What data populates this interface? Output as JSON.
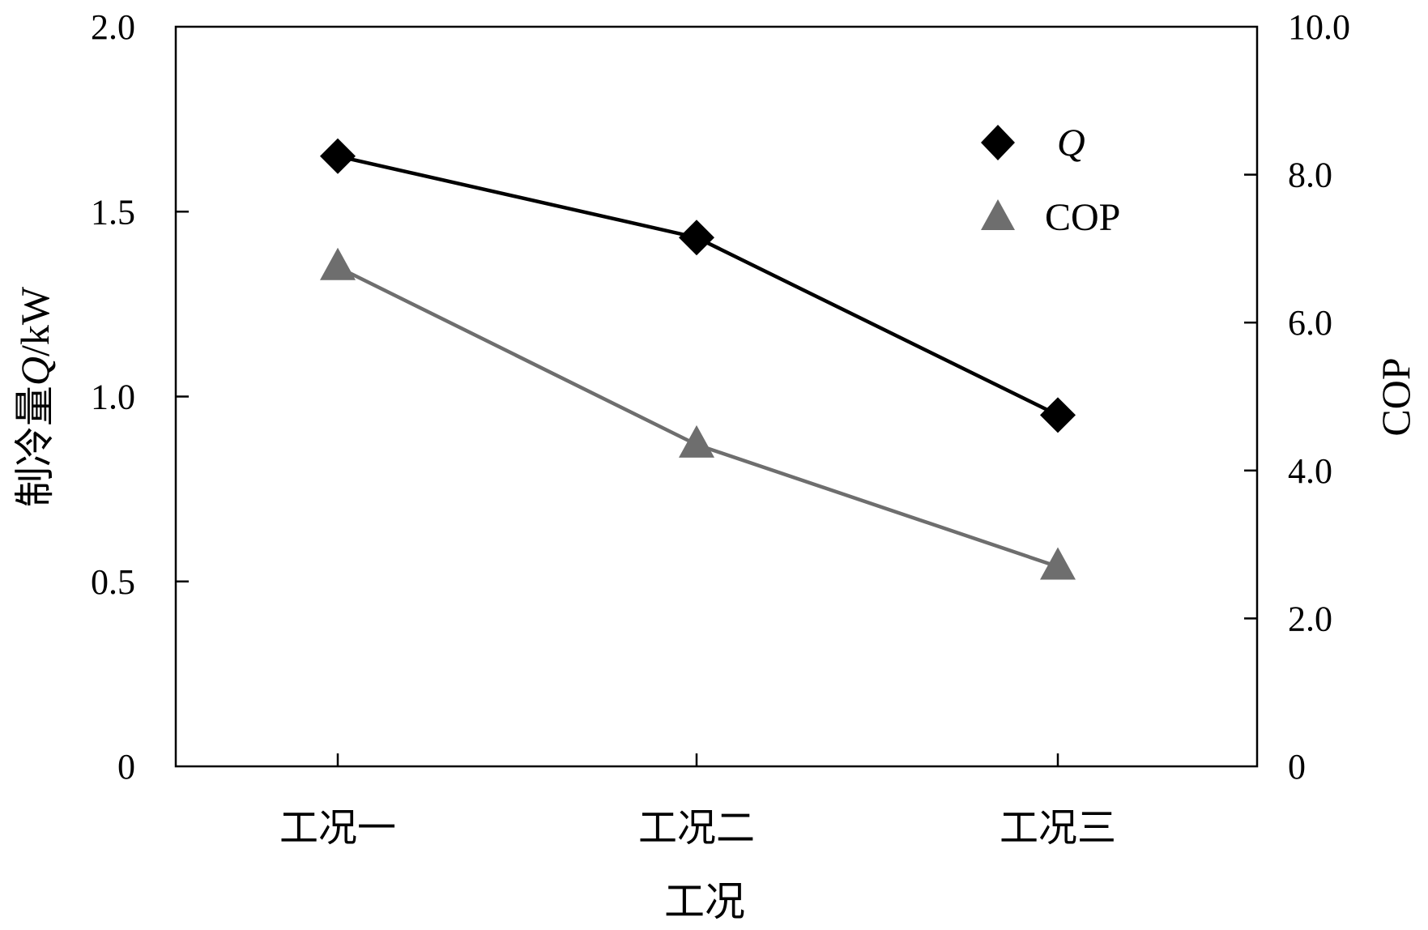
{
  "chart_data": {
    "type": "line",
    "categories": [
      "工况一",
      "工况二",
      "工况三"
    ],
    "xlabel": "工况",
    "ylabel_left_prefix": "制冷量",
    "ylabel_left_var": "Q",
    "ylabel_left_unit": "/kW",
    "ylabel_right": "COP",
    "y_left": {
      "min": 0,
      "max": 2.0,
      "ticks": [
        0,
        0.5,
        1.0,
        1.5,
        2.0
      ],
      "tick_labels": [
        "0",
        "0.5",
        "1.0",
        "1.5",
        "2.0"
      ]
    },
    "y_right": {
      "min": 0,
      "max": 10.0,
      "ticks": [
        0,
        2.0,
        4.0,
        6.0,
        8.0,
        10.0
      ],
      "tick_labels": [
        "0",
        "2.0",
        "4.0",
        "6.0",
        "8.0",
        "10.0"
      ]
    },
    "series": [
      {
        "name": "Q",
        "axis": "left",
        "marker": "diamond",
        "color": "#000000",
        "values": [
          1.65,
          1.43,
          0.95
        ]
      },
      {
        "name": "COP",
        "axis": "right",
        "marker": "triangle",
        "color": "#6e6e6e",
        "values": [
          6.75,
          4.35,
          2.7
        ]
      }
    ],
    "legend": "top-right",
    "grid": false
  }
}
